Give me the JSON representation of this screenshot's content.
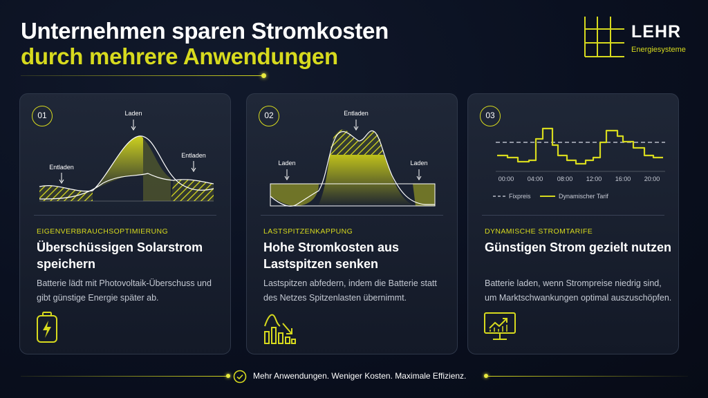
{
  "header": {
    "title_line1": "Unternehmen sparen Stromkosten",
    "title_line2": "durch mehrere Anwendungen"
  },
  "brand": {
    "name": "LEHR",
    "subtitle": "Energiesysteme"
  },
  "colors": {
    "accent": "#d7da1e",
    "background": "#0a1020",
    "card": "#1c2333"
  },
  "cards": [
    {
      "number": "01",
      "chart_labels": {
        "charge": "Laden",
        "discharge_left": "Entladen",
        "discharge_right": "Entladen"
      },
      "category": "EIGENVERBRAUCHSOPTIMIERUNG",
      "heading": "Überschüssigen Solarstrom speichern",
      "description": "Batterie lädt mit Photovoltaik-Überschuss und gibt günstige Energie später ab.",
      "icon": "battery-charging-icon"
    },
    {
      "number": "02",
      "chart_labels": {
        "discharge": "Entladen",
        "charge_left": "Laden",
        "charge_right": "Laden"
      },
      "category": "LASTSPITZENKAPPUNG",
      "heading": "Hohe Stromkosten aus Lastspitzen senken",
      "description": "Lastspitzen abfedern, indem die Batterie statt des Netzes Spitzenlasten übernimmt.",
      "icon": "peak-reduction-chart-icon"
    },
    {
      "number": "03",
      "category": "DYNAMISCHE STROMTARIFE",
      "heading": "Günstigen Strom gezielt nutzen",
      "description": "Batterie laden, wenn Strompreise niedrig sind, um Marktschwankungen optimal auszuschöpfen.",
      "icon": "monitor-trend-icon"
    }
  ],
  "chart_data": {
    "type": "line",
    "x": [
      "00:00",
      "04:00",
      "08:00",
      "12:00",
      "16:00",
      "20:00"
    ],
    "series": [
      {
        "name": "Fixpreis",
        "style": "dashed"
      },
      {
        "name": "Dynamischer Tarif",
        "style": "step"
      }
    ],
    "xlabel": "",
    "ylabel": "",
    "grid": false,
    "legend": "bottom"
  },
  "footer": {
    "text": "Mehr Anwendungen. Weniger Kosten. Maximale Effizienz."
  }
}
